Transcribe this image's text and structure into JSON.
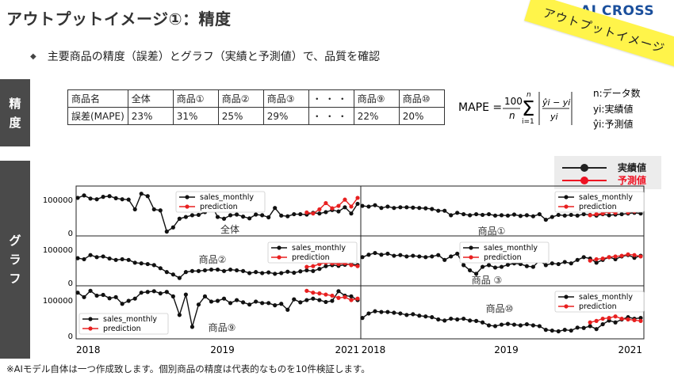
{
  "header": {
    "title": "アウトプットイメージ①：精度",
    "logo": "AI CROSS",
    "banner": "アウトプットイメージ"
  },
  "bullet": "主要商品の精度（誤差）とグラフ（実績と予測値）で、品質を確認",
  "side_tabs": {
    "accuracy": [
      "精",
      "度"
    ],
    "graph": [
      "グ",
      "ラ",
      "フ"
    ]
  },
  "table": {
    "header": [
      "商品名",
      "全体",
      "商品①",
      "商品②",
      "商品③",
      "・・・",
      "商品⑨",
      "商品⑩"
    ],
    "row": [
      "誤差(MAPE)",
      "23%",
      "31%",
      "25%",
      "29%",
      "・・・",
      "22%",
      "20%"
    ]
  },
  "formula": {
    "lhs": "MAPE",
    "coef_num": "100",
    "coef_den": "n",
    "sum_top": "n",
    "sum_bottom": "i=1",
    "frac_num": "ŷi − yi",
    "frac_den": "yi",
    "defs": [
      "n:データ数",
      "yi:実績値",
      "ŷi:予測値"
    ]
  },
  "legend_box": {
    "actual": "実績値",
    "prediction": "予測値"
  },
  "colors": {
    "actual": "#111111",
    "prediction": "#e82020",
    "tab": "#4a4a4a",
    "banner": "#fff44a"
  },
  "footnote": "※AIモデル自体は一つ作成致します。個別商品の精度は代表的なものを10件検証します。",
  "chart_data": {
    "type": "line",
    "x_tick_labels": [
      "2018",
      "2019",
      "2021"
    ],
    "y_tick_labels": [
      "0",
      "100000"
    ],
    "series_names": [
      "sales_monthly",
      "prediction"
    ],
    "panels": [
      {
        "label": "全体",
        "actual": [
          105000,
          112000,
          103000,
          101000,
          108000,
          110000,
          104000,
          101000,
          100000,
          72000,
          117000,
          110000,
          72000,
          69000,
          8000,
          20000,
          45000,
          50000,
          55000,
          56000,
          64000,
          85000,
          50000,
          45000,
          55000,
          57000,
          51000,
          46000,
          57000,
          55000,
          49000,
          76000,
          54000,
          52000,
          58000,
          58000,
          57000,
          62000,
          60000,
          64000,
          70000,
          66000,
          78000,
          60000,
          88000
        ],
        "prediction": [
          63000,
          60000,
          72000,
          90000,
          75000,
          82000,
          100000,
          80000,
          105000
        ]
      },
      {
        "label": "商品①",
        "actual": [
          82000,
          80000,
          84000,
          76000,
          80000,
          76000,
          78000,
          78000,
          77000,
          76000,
          75000,
          73000,
          68000,
          68000,
          55000,
          62000,
          58000,
          55000,
          58000,
          56000,
          58000,
          54000,
          55000,
          54000,
          57000,
          53000,
          55000,
          52000,
          58000,
          42000,
          50000,
          56000,
          54000,
          56000,
          54000,
          58000,
          56000,
          54000,
          58000,
          55000,
          57000,
          58000,
          60000,
          62000,
          60000
        ],
        "prediction": [
          55000,
          58000,
          60000,
          65000,
          62000,
          70000,
          63000,
          66000,
          70000
        ]
      },
      {
        "label": "商品②",
        "actual": [
          75000,
          72000,
          84000,
          78000,
          80000,
          74000,
          70000,
          72000,
          70000,
          62000,
          60000,
          58000,
          55000,
          46000,
          35000,
          28000,
          18000,
          35000,
          38000,
          38000,
          40000,
          42000,
          42000,
          38000,
          42000,
          40000,
          38000,
          32000,
          35000,
          32000,
          34000,
          30000,
          32000,
          36000,
          33000,
          37000,
          40000,
          38000,
          44000,
          52000,
          55000,
          53000,
          56000,
          58000,
          55000
        ],
        "prediction": [
          50000,
          52000,
          58000,
          62000,
          60000,
          58000,
          60000,
          55000,
          52000
        ]
      },
      {
        "label": "商品 ③",
        "actual": [
          78000,
          85000,
          90000,
          85000,
          88000,
          82000,
          84000,
          80000,
          82000,
          80000,
          78000,
          80000,
          84000,
          70000,
          80000,
          88000,
          55000,
          40000,
          30000,
          50000,
          55000,
          48000,
          50000,
          56000,
          60000,
          58000,
          52000,
          50000,
          68000,
          55000,
          60000,
          58000,
          64000,
          60000,
          70000,
          78000,
          74000,
          62000,
          70000,
          78000,
          72000,
          80000,
          84000,
          76000,
          82000
        ],
        "prediction": [
          68000,
          72000,
          74000,
          78000,
          80000,
          82000,
          86000,
          84000,
          80000
        ]
      },
      {
        "label": "商品⑨",
        "actual": [
          120000,
          108000,
          125000,
          112000,
          114000,
          105000,
          108000,
          90000,
          98000,
          104000,
          120000,
          122000,
          124000,
          118000,
          122000,
          110000,
          60000,
          115000,
          28000,
          88000,
          110000,
          96000,
          98000,
          104000,
          92000,
          100000,
          94000,
          88000,
          96000,
          92000,
          92000,
          86000,
          90000,
          74000,
          102000,
          94000,
          100000,
          104000,
          100000,
          95000,
          98000,
          124000,
          112000,
          110000,
          100000
        ],
        "prediction": [
          125000,
          120000,
          118000,
          115000,
          112000,
          106000,
          108000,
          100000,
          104000
        ]
      },
      {
        "label": "商品⑩",
        "actual": [
          52000,
          64000,
          70000,
          68000,
          68000,
          66000,
          64000,
          60000,
          62000,
          58000,
          56000,
          54000,
          48000,
          45000,
          50000,
          48000,
          50000,
          45000,
          44000,
          40000,
          32000,
          30000,
          34000,
          36000,
          34000,
          32000,
          35000,
          32000,
          30000,
          20000,
          18000,
          16000,
          20000,
          18000,
          26000,
          25000,
          30000,
          22000,
          35000,
          45000,
          40000,
          48000,
          54000,
          50000,
          52000
        ],
        "prediction": [
          40000,
          44000,
          50000,
          52000,
          56000,
          50000,
          48000,
          46000,
          44000
        ]
      }
    ]
  }
}
